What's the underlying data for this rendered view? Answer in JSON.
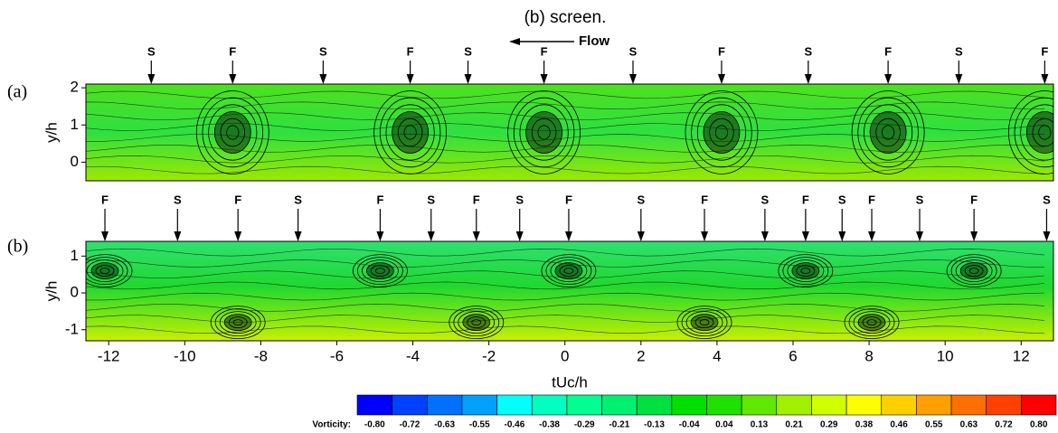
{
  "title": "(b) screen.",
  "flow_label": "Flow",
  "chart_data": [
    {
      "type": "contour",
      "panel_label": "(a)",
      "ylabel": "y/h",
      "xlim": [
        -12.6,
        12.85
      ],
      "ylim": [
        -0.5,
        2.1
      ],
      "yticks": [
        0,
        1,
        2
      ],
      "markers": [
        {
          "label": "S",
          "x": -10.88
        },
        {
          "label": "F",
          "x": -8.74
        },
        {
          "label": "S",
          "x": -6.36
        },
        {
          "label": "F",
          "x": -4.07
        },
        {
          "label": "S",
          "x": -2.55
        },
        {
          "label": "F",
          "x": -0.55
        },
        {
          "label": "S",
          "x": 1.79
        },
        {
          "label": "F",
          "x": 4.12
        },
        {
          "label": "S",
          "x": 6.4
        },
        {
          "label": "F",
          "x": 8.5
        },
        {
          "label": "S",
          "x": 10.36
        },
        {
          "label": "F",
          "x": 12.62
        }
      ]
    },
    {
      "type": "contour",
      "panel_label": "(b)",
      "ylabel": "y/h",
      "xlabel": "tUc/h",
      "xlim": [
        -12.6,
        12.85
      ],
      "ylim": [
        -1.3,
        1.4
      ],
      "yticks": [
        -1,
        0,
        1
      ],
      "xticks": [
        -12,
        -10,
        -8,
        -6,
        -4,
        -2,
        0,
        2,
        4,
        6,
        8,
        10,
        12
      ],
      "markers": [
        {
          "label": "F",
          "x": -12.1
        },
        {
          "label": "S",
          "x": -10.19
        },
        {
          "label": "F",
          "x": -8.6
        },
        {
          "label": "S",
          "x": -7.02
        },
        {
          "label": "F",
          "x": -4.86
        },
        {
          "label": "S",
          "x": -3.52
        },
        {
          "label": "F",
          "x": -2.33
        },
        {
          "label": "S",
          "x": -1.19
        },
        {
          "label": "F",
          "x": 0.1
        },
        {
          "label": "S",
          "x": 2.0
        },
        {
          "label": "F",
          "x": 3.67
        },
        {
          "label": "S",
          "x": 5.26
        },
        {
          "label": "F",
          "x": 6.33
        },
        {
          "label": "S",
          "x": 7.29
        },
        {
          "label": "F",
          "x": 8.07
        },
        {
          "label": "S",
          "x": 9.33
        },
        {
          "label": "F",
          "x": 10.76
        },
        {
          "label": "S",
          "x": 12.67
        }
      ]
    }
  ],
  "colorbar": {
    "label": "Vorticity:",
    "levels": [
      {
        "value": -0.8,
        "label": "-0.80"
      },
      {
        "value": -0.72,
        "label": "-0.72"
      },
      {
        "value": -0.63,
        "label": "-0.63"
      },
      {
        "value": -0.55,
        "label": "-0.55"
      },
      {
        "value": -0.46,
        "label": "-0.46"
      },
      {
        "value": -0.38,
        "label": "-0.38"
      },
      {
        "value": -0.29,
        "label": "-0.29"
      },
      {
        "value": -0.21,
        "label": "-0.21"
      },
      {
        "value": -0.13,
        "label": "-0.13"
      },
      {
        "value": -0.04,
        "label": "-0.04"
      },
      {
        "value": 0.04,
        "label": "0.04"
      },
      {
        "value": 0.13,
        "label": "0.13"
      },
      {
        "value": 0.21,
        "label": "0.21"
      },
      {
        "value": 0.29,
        "label": "0.29"
      },
      {
        "value": 0.38,
        "label": "0.38"
      },
      {
        "value": 0.46,
        "label": "0.46"
      },
      {
        "value": 0.55,
        "label": "0.55"
      },
      {
        "value": 0.63,
        "label": "0.63"
      },
      {
        "value": 0.72,
        "label": "0.72"
      },
      {
        "value": 0.8,
        "label": "0.80"
      }
    ],
    "colors": [
      "#0000ff",
      "#0040ff",
      "#0070ff",
      "#00a0ff",
      "#00ffff",
      "#00ffc0",
      "#00ff90",
      "#00f070",
      "#00e040",
      "#00e000",
      "#20e000",
      "#60e800",
      "#a0f000",
      "#d0ff00",
      "#ffff00",
      "#ffd000",
      "#ffa000",
      "#ff7000",
      "#ff4000",
      "#ff0000"
    ]
  }
}
